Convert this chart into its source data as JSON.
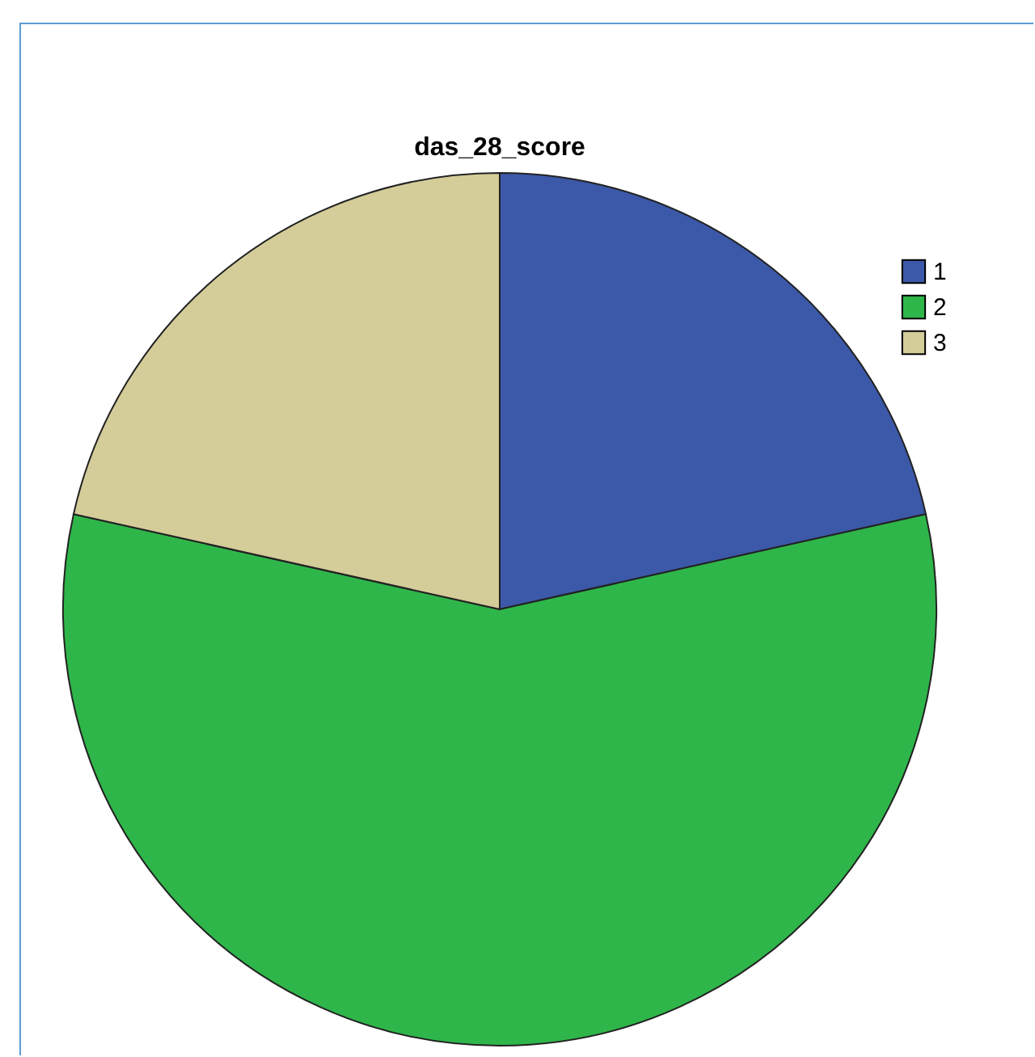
{
  "chart_data": {
    "type": "pie",
    "title": "das_28_score",
    "categories": [
      "1",
      "2",
      "3"
    ],
    "values": [
      21.5,
      57,
      21.5
    ],
    "colors": [
      "#3c58a8",
      "#2fb64a",
      "#d4cc99"
    ],
    "legend": "top right"
  }
}
